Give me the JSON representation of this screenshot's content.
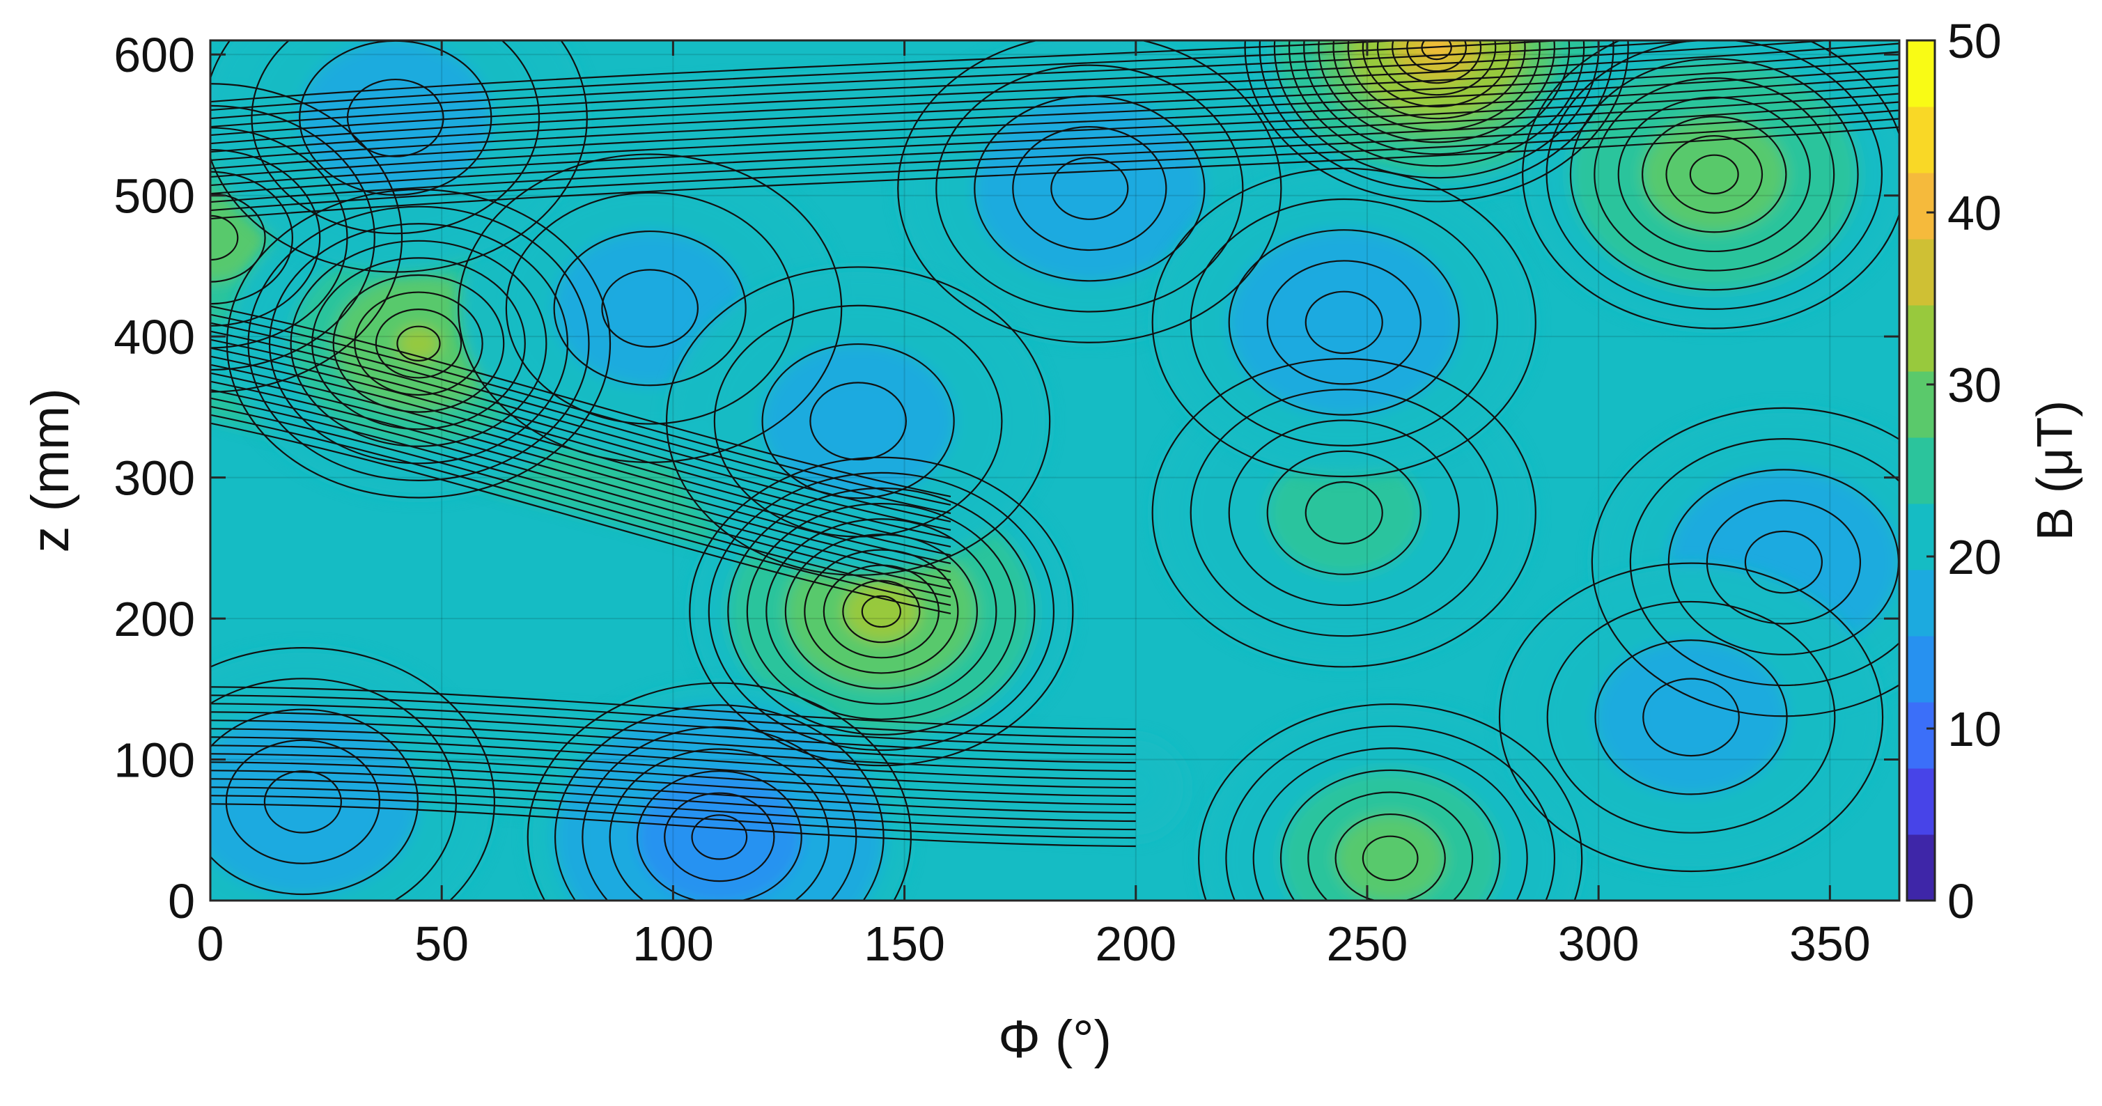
{
  "chart_data": {
    "type": "heatmap",
    "subtype": "filled-contour",
    "title": "",
    "xlabel": "Φ (°)",
    "ylabel": "z (mm)",
    "xlim": [
      0,
      365
    ],
    "ylim": [
      0,
      610
    ],
    "xticks": [
      0,
      50,
      100,
      150,
      200,
      250,
      300,
      350
    ],
    "yticks": [
      0,
      100,
      200,
      300,
      400,
      500,
      600
    ],
    "colorbar": {
      "label": "B (μT)",
      "limits": [
        0,
        50
      ],
      "ticks": [
        0,
        10,
        20,
        30,
        40,
        50
      ],
      "colormap": "parula",
      "colors": [
        "#3e26a8",
        "#4744e8",
        "#3b6ff9",
        "#2791f0",
        "#1caadf",
        "#15bcc4",
        "#2bc49c",
        "#5ac96b",
        "#98c93d",
        "#cfc034",
        "#f5ba3c",
        "#f9d826",
        "#f9fb15"
      ]
    },
    "background_field_uT": 20,
    "features": [
      {
        "phi": 0,
        "z": 470,
        "B": 30,
        "kind": "max"
      },
      {
        "phi": 45,
        "z": 395,
        "B": 33,
        "kind": "max"
      },
      {
        "phi": 145,
        "z": 205,
        "B": 36,
        "kind": "max"
      },
      {
        "phi": 110,
        "z": 45,
        "B": 10,
        "kind": "min"
      },
      {
        "phi": 20,
        "z": 70,
        "B": 14,
        "kind": "min"
      },
      {
        "phi": 265,
        "z": 605,
        "B": 42,
        "kind": "max"
      },
      {
        "phi": 325,
        "z": 515,
        "B": 32,
        "kind": "max"
      },
      {
        "phi": 255,
        "z": 30,
        "B": 30,
        "kind": "max"
      },
      {
        "phi": 245,
        "z": 275,
        "B": 26,
        "kind": "max"
      },
      {
        "phi": 190,
        "z": 505,
        "B": 15,
        "kind": "min"
      },
      {
        "phi": 245,
        "z": 410,
        "B": 15,
        "kind": "min"
      },
      {
        "phi": 95,
        "z": 420,
        "B": 17,
        "kind": "min"
      },
      {
        "phi": 140,
        "z": 340,
        "B": 17,
        "kind": "min"
      },
      {
        "phi": 40,
        "z": 555,
        "B": 17,
        "kind": "min"
      },
      {
        "phi": 340,
        "z": 240,
        "B": 15,
        "kind": "min"
      },
      {
        "phi": 320,
        "z": 130,
        "B": 17,
        "kind": "min"
      }
    ],
    "ridges": [
      {
        "phi_start": 0,
        "z_start": 525,
        "phi_end": 365,
        "z_end": 590,
        "B": 22,
        "kind": "trough"
      },
      {
        "phi_start": 0,
        "z_start": 380,
        "phi_end": 160,
        "z_end": 245,
        "B": 26,
        "kind": "ridge"
      },
      {
        "phi_start": 0,
        "z_start": 110,
        "phi_end": 200,
        "z_end": 80,
        "B": 19,
        "kind": "ridge"
      }
    ],
    "grid": true,
    "contour_lines": true
  }
}
